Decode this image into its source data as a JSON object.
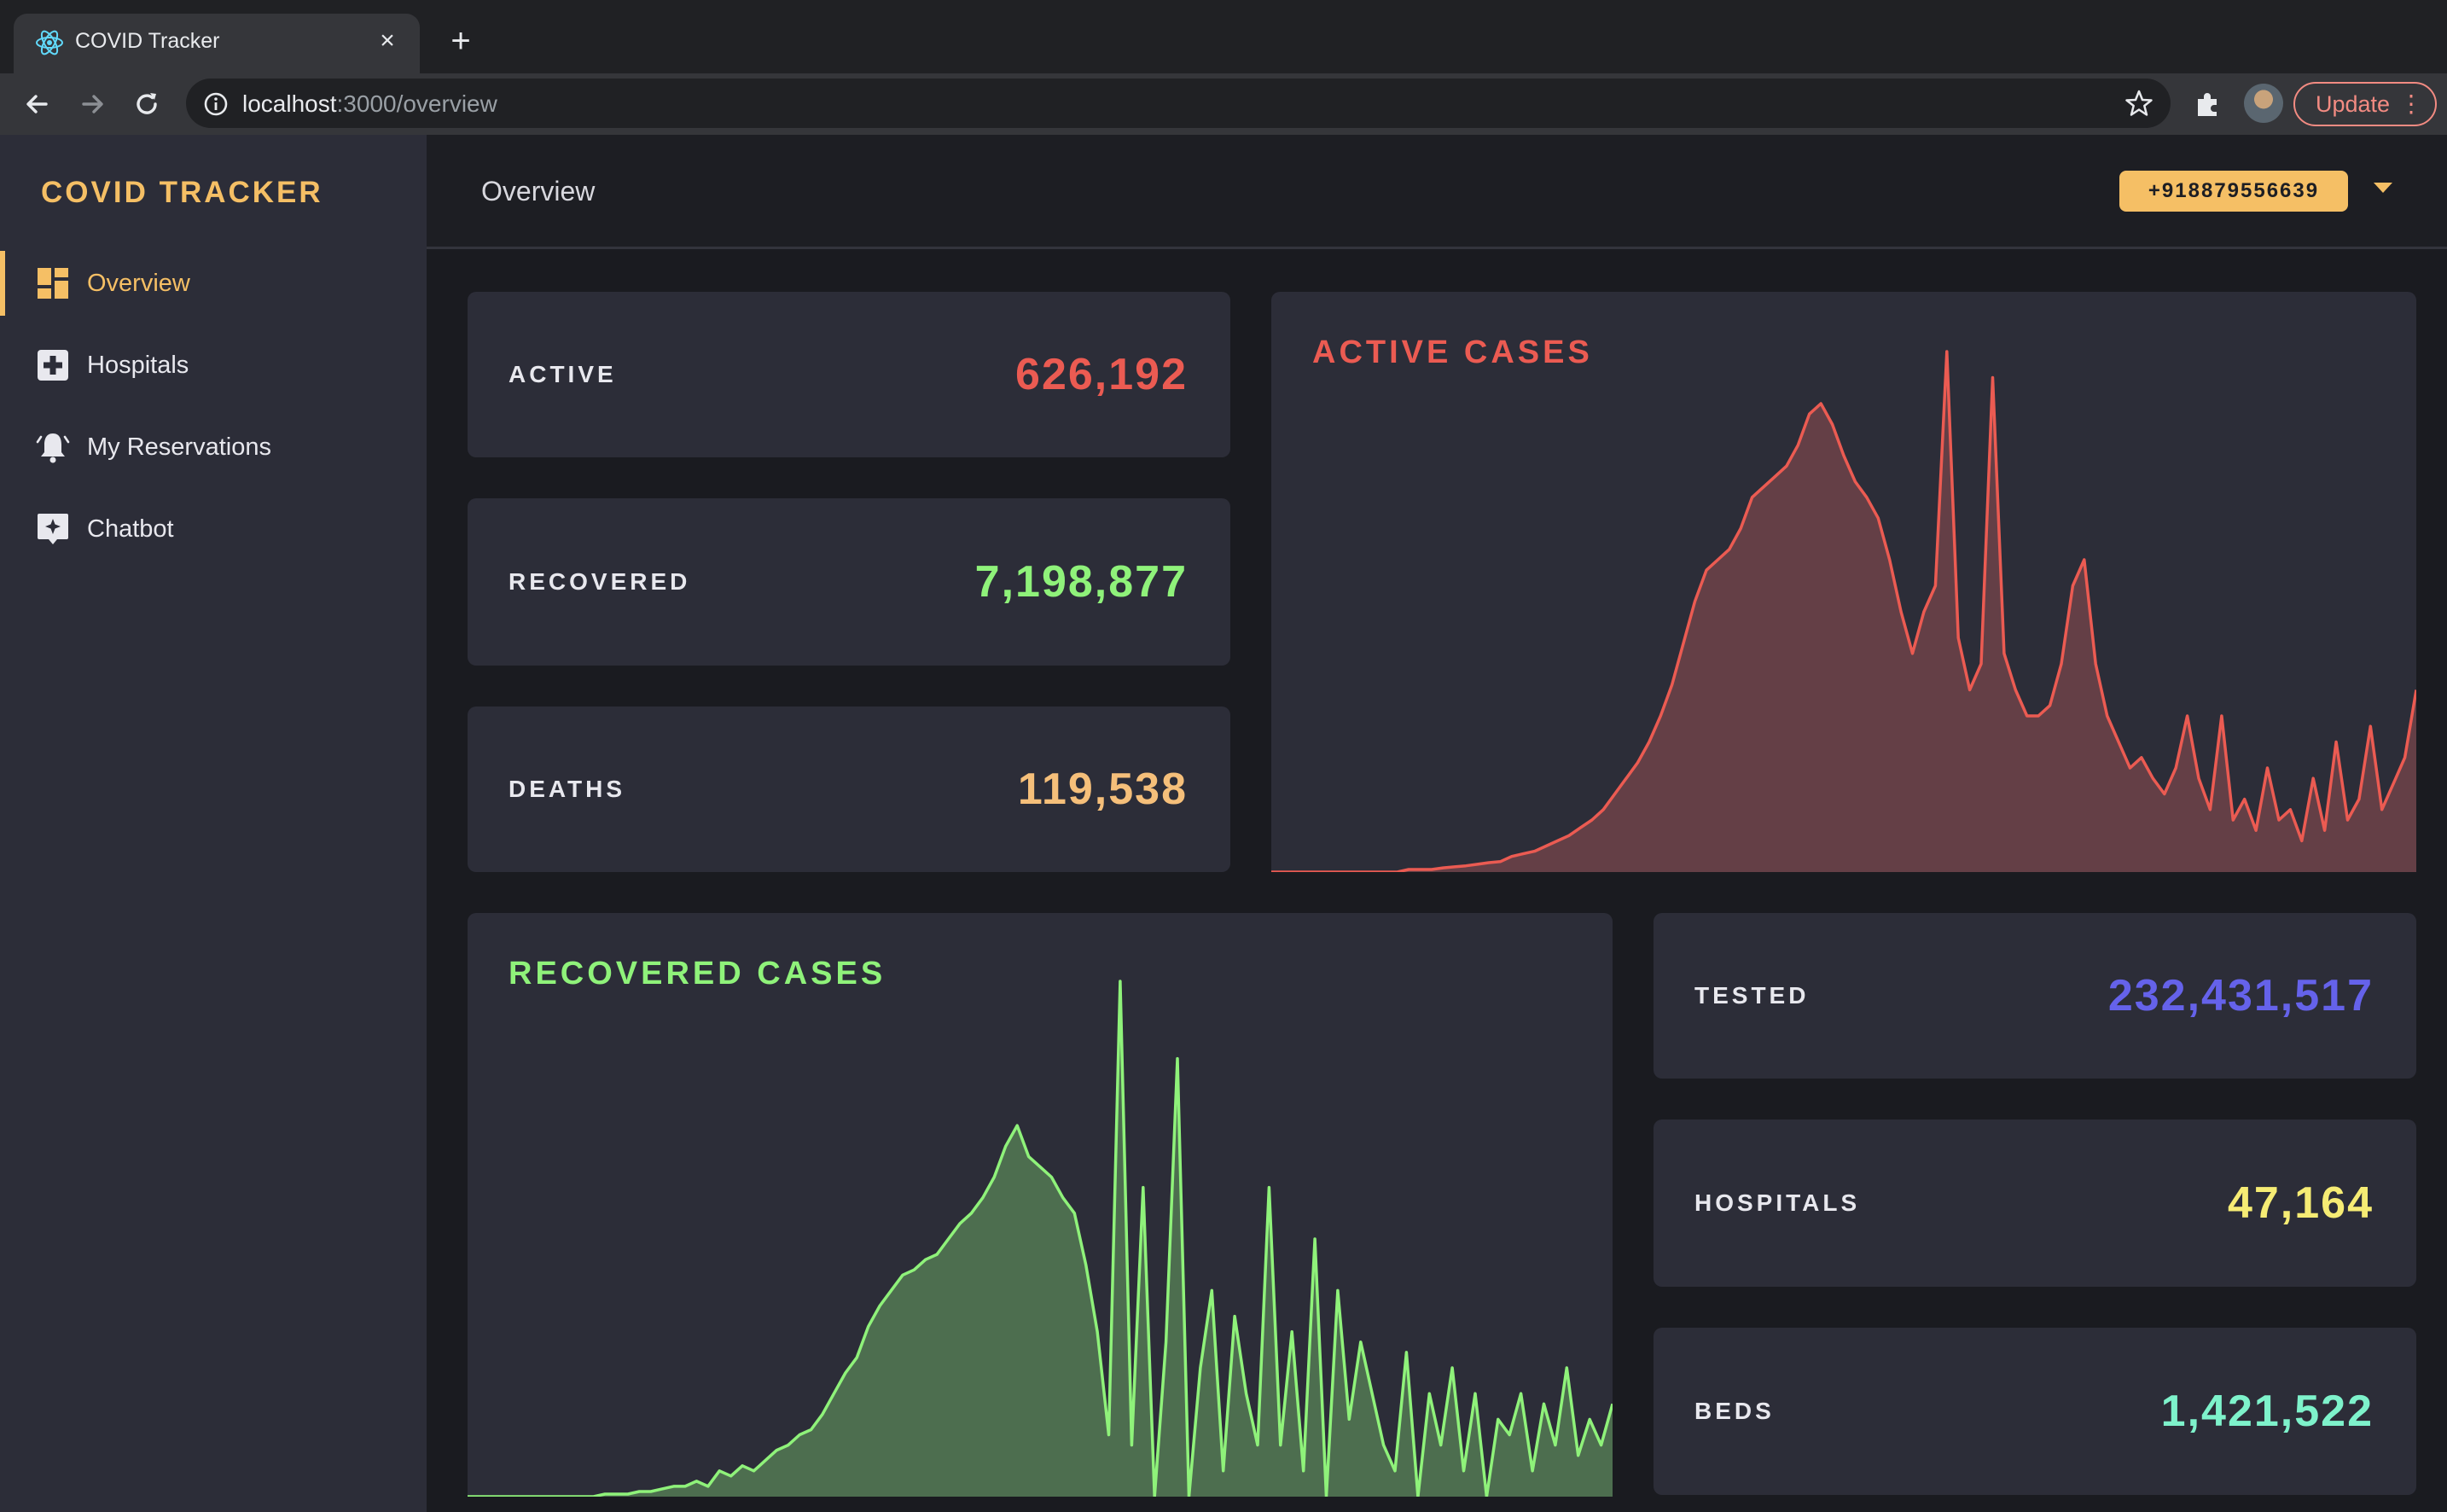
{
  "browser": {
    "tab_title": "COVID Tracker",
    "url_host": "localhost",
    "url_path": ":3000/overview",
    "update_label": "Update"
  },
  "app": {
    "brand": "COVID TRACKER",
    "nav": [
      {
        "label": "Overview",
        "icon": "dashboard-icon",
        "active": true
      },
      {
        "label": "Hospitals",
        "icon": "hospital-plus-icon",
        "active": false
      },
      {
        "label": "My Reservations",
        "icon": "bell-icon",
        "active": false
      },
      {
        "label": "Chatbot",
        "icon": "chatbot-icon",
        "active": false
      }
    ],
    "page_title": "Overview",
    "phone": "+918879556639"
  },
  "stats": {
    "active": {
      "label": "ACTIVE",
      "value": "626,192",
      "color": "#eb5b52"
    },
    "recovered": {
      "label": "RECOVERED",
      "value": "7,198,877",
      "color": "#8ff27a"
    },
    "deaths": {
      "label": "DEATHS",
      "value": "119,538",
      "color": "#f5bf7a"
    },
    "tested": {
      "label": "TESTED",
      "value": "232,431,517",
      "color": "#6562ea"
    },
    "hospitals": {
      "label": "HOSPITALS",
      "value": "47,164",
      "color": "#f6ec74"
    },
    "beds": {
      "label": "BEDS",
      "value": "1,421,522",
      "color": "#7ef2cb"
    }
  },
  "colors": {
    "accent": "#f5bf65",
    "active_line": "#eb5b52",
    "active_fill": "#643f46",
    "recovered_line": "#8ff27a",
    "recovered_fill": "#4d6e4f"
  },
  "chart_data": [
    {
      "type": "area",
      "title": "ACTIVE CASES",
      "color": "#eb5b52",
      "x_range": [
        0,
        1
      ],
      "ylim": [
        0,
        1
      ],
      "values": [
        0.0,
        0.0,
        0.0,
        0.0,
        0.0,
        0.0,
        0.0,
        0.0,
        0.0,
        0.0,
        0.0,
        0.0,
        0.005,
        0.005,
        0.005,
        0.008,
        0.01,
        0.012,
        0.015,
        0.018,
        0.02,
        0.03,
        0.035,
        0.04,
        0.05,
        0.06,
        0.07,
        0.085,
        0.1,
        0.12,
        0.15,
        0.18,
        0.21,
        0.25,
        0.3,
        0.36,
        0.44,
        0.52,
        0.58,
        0.6,
        0.62,
        0.66,
        0.72,
        0.74,
        0.76,
        0.78,
        0.82,
        0.88,
        0.9,
        0.86,
        0.8,
        0.75,
        0.72,
        0.68,
        0.6,
        0.5,
        0.42,
        0.5,
        0.55,
        1.0,
        0.45,
        0.35,
        0.4,
        0.95,
        0.42,
        0.35,
        0.3,
        0.3,
        0.32,
        0.4,
        0.55,
        0.6,
        0.4,
        0.3,
        0.25,
        0.2,
        0.22,
        0.18,
        0.15,
        0.2,
        0.3,
        0.18,
        0.12,
        0.3,
        0.1,
        0.14,
        0.08,
        0.2,
        0.1,
        0.12,
        0.06,
        0.18,
        0.08,
        0.25,
        0.1,
        0.14,
        0.28,
        0.12,
        0.17,
        0.22,
        0.35
      ],
      "xlabel": "",
      "ylabel": ""
    },
    {
      "type": "area",
      "title": "RECOVERED CASES",
      "color": "#8ff27a",
      "x_range": [
        0,
        1
      ],
      "ylim": [
        0,
        1
      ],
      "values": [
        0.0,
        0.0,
        0.0,
        0.0,
        0.0,
        0.0,
        0.0,
        0.0,
        0.0,
        0.0,
        0.0,
        0.0,
        0.005,
        0.005,
        0.005,
        0.01,
        0.01,
        0.015,
        0.02,
        0.02,
        0.03,
        0.02,
        0.05,
        0.04,
        0.06,
        0.05,
        0.07,
        0.09,
        0.1,
        0.12,
        0.13,
        0.16,
        0.2,
        0.24,
        0.27,
        0.33,
        0.37,
        0.4,
        0.43,
        0.44,
        0.46,
        0.47,
        0.5,
        0.53,
        0.55,
        0.58,
        0.62,
        0.68,
        0.72,
        0.66,
        0.64,
        0.62,
        0.58,
        0.55,
        0.45,
        0.32,
        0.12,
        1.0,
        0.1,
        0.6,
        0.0,
        0.3,
        0.85,
        0.0,
        0.25,
        0.4,
        0.05,
        0.35,
        0.2,
        0.1,
        0.6,
        0.1,
        0.32,
        0.05,
        0.5,
        0.0,
        0.4,
        0.15,
        0.3,
        0.2,
        0.1,
        0.05,
        0.28,
        0.0,
        0.2,
        0.1,
        0.25,
        0.05,
        0.2,
        0.0,
        0.15,
        0.12,
        0.2,
        0.05,
        0.18,
        0.1,
        0.25,
        0.08,
        0.15,
        0.1,
        0.18
      ],
      "xlabel": "",
      "ylabel": ""
    }
  ]
}
